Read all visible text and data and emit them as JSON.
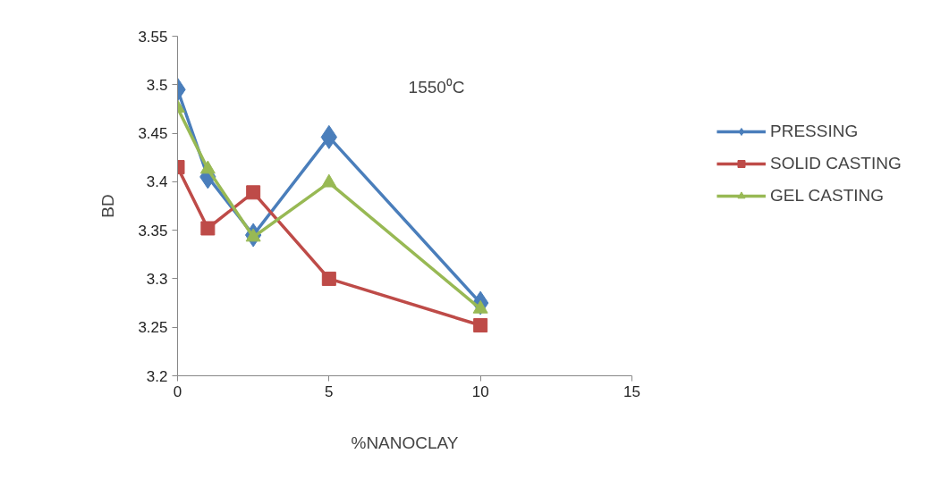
{
  "chart_data": {
    "type": "line",
    "xlabel": "%NANOCLAY",
    "ylabel": "BD",
    "annotations": [
      "1550⁰C"
    ],
    "x": [
      0,
      1,
      2.5,
      5,
      10
    ],
    "series": [
      {
        "name": "PRESSING",
        "color": "#4a7ebb",
        "marker": "diamond",
        "values": [
          3.495,
          3.405,
          3.345,
          3.446,
          3.275
        ]
      },
      {
        "name": "SOLID CASTING",
        "color": "#be4b48",
        "marker": "square",
        "values": [
          3.415,
          3.352,
          3.389,
          3.3,
          3.252
        ]
      },
      {
        "name": "GEL CASTING",
        "color": "#98b954",
        "marker": "triangle",
        "values": [
          3.476,
          3.413,
          3.343,
          3.399,
          3.269
        ]
      }
    ],
    "xlim": [
      0,
      15
    ],
    "xticks": [
      0,
      5,
      10,
      15
    ],
    "ylim": [
      3.2,
      3.55
    ],
    "yticks": [
      3.2,
      3.25,
      3.3,
      3.35,
      3.4,
      3.45,
      3.5,
      3.55
    ],
    "grid": false,
    "legend": "right"
  }
}
